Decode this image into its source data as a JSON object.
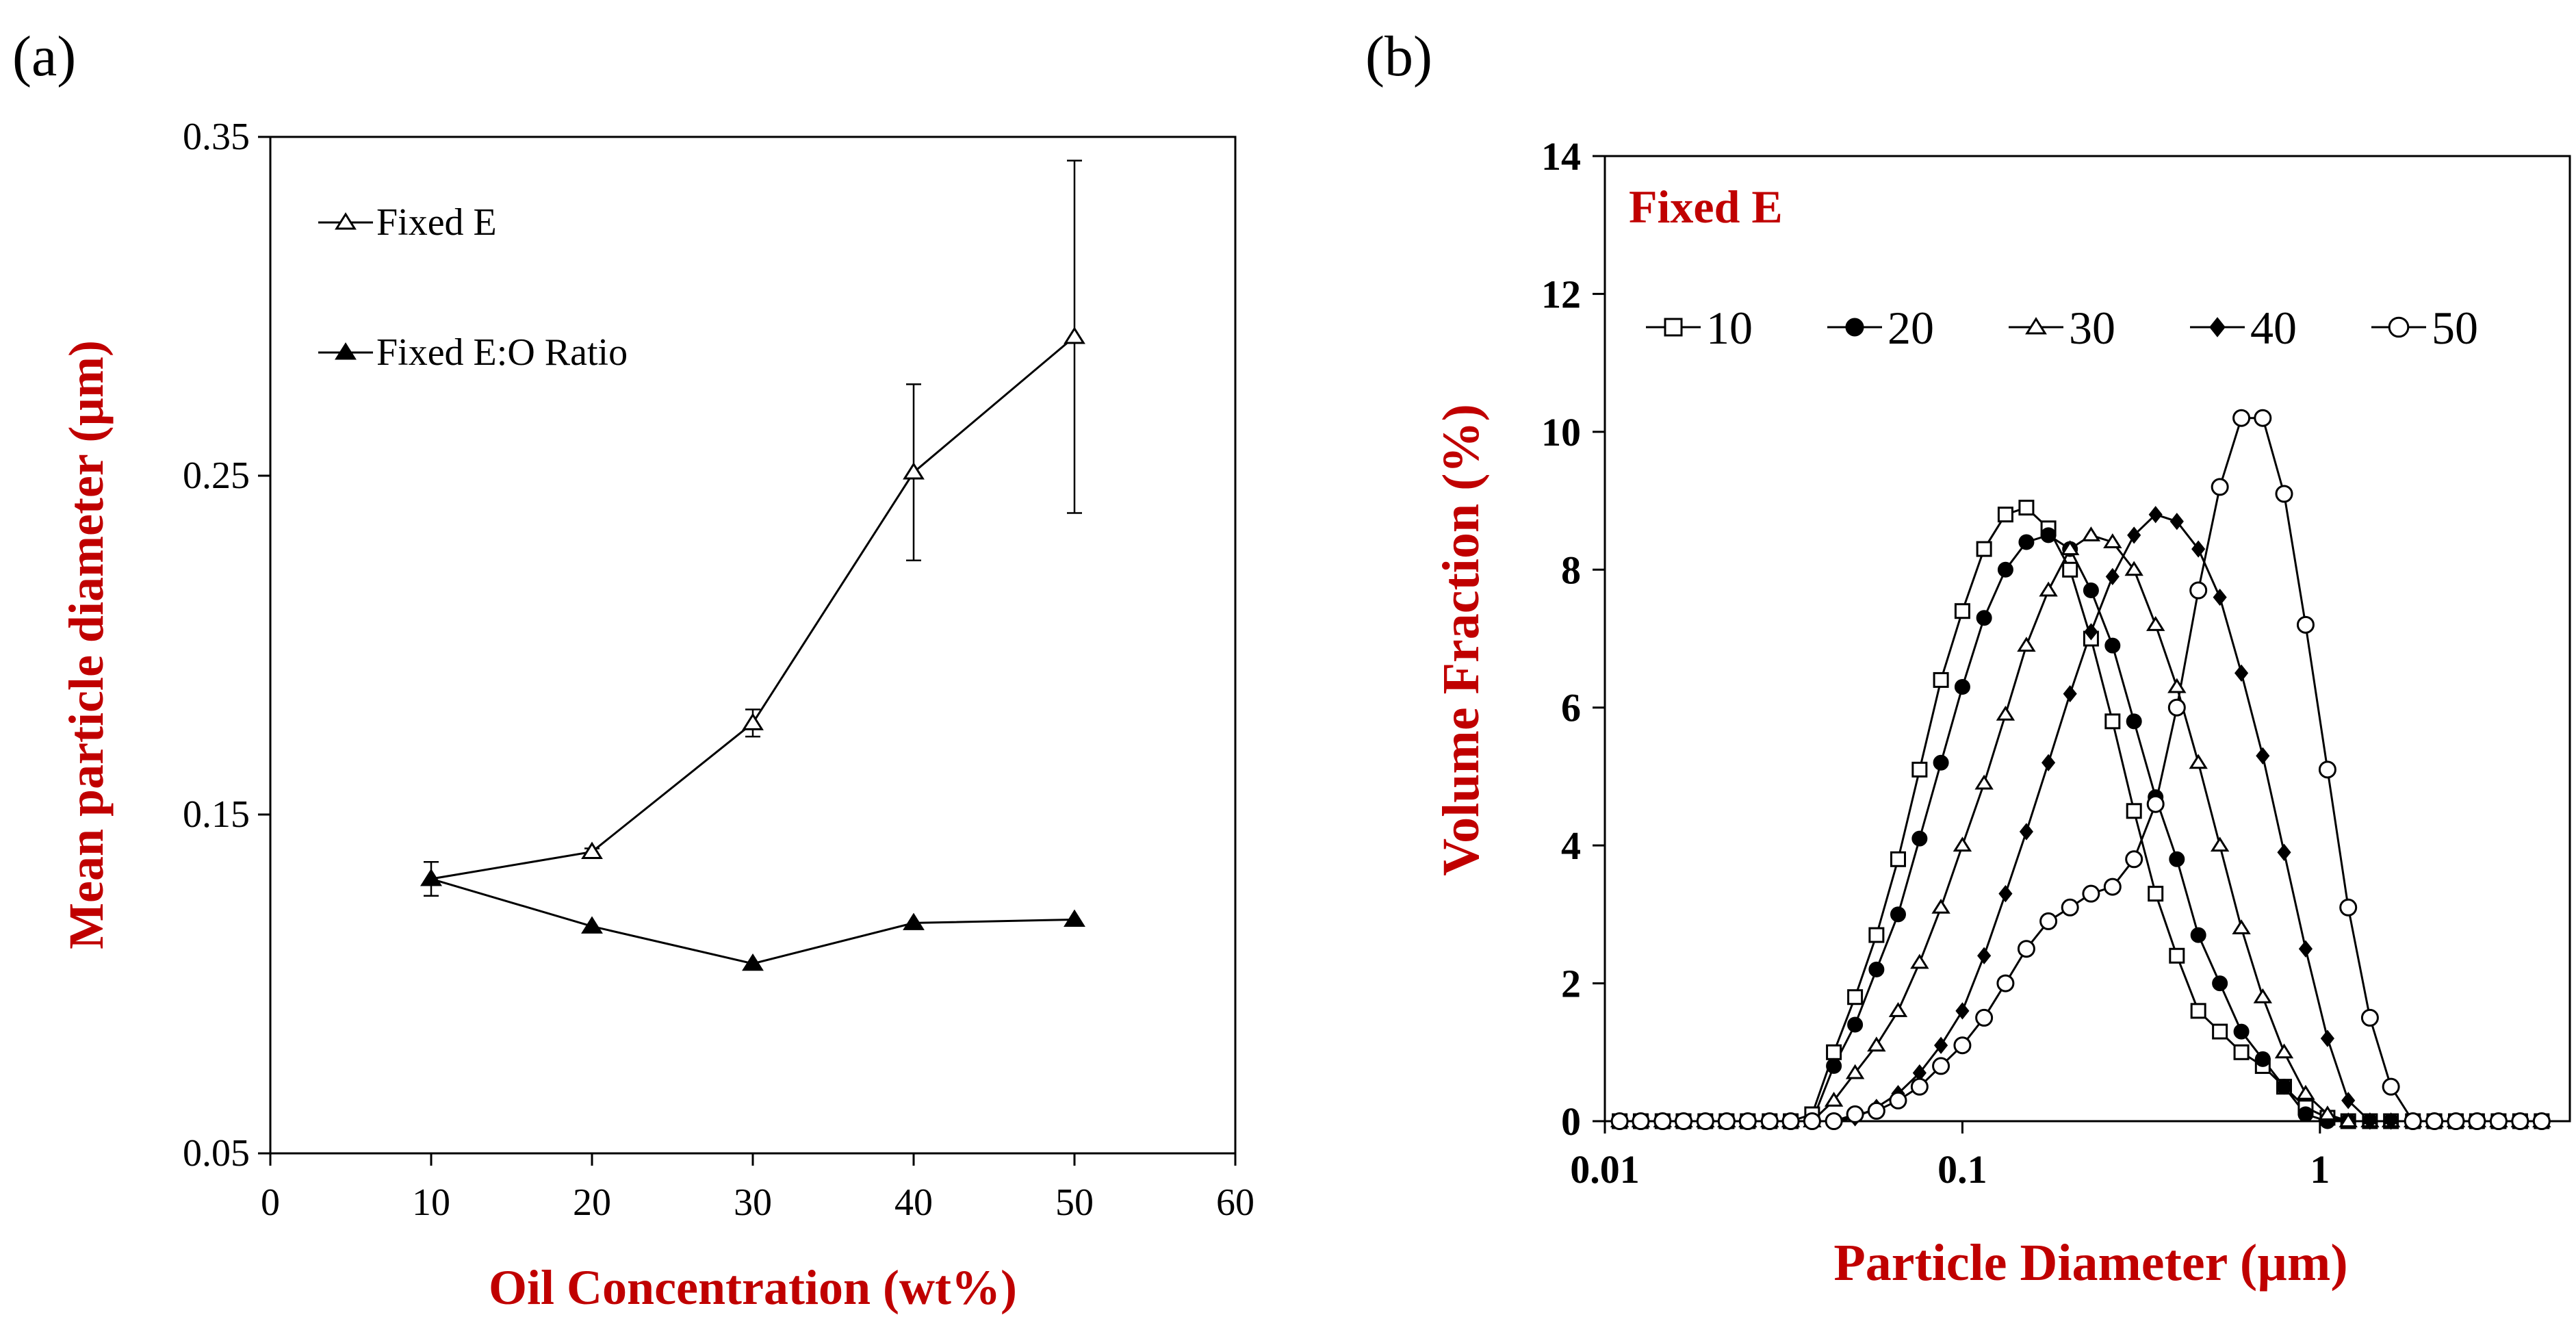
{
  "colors": {
    "axis": "#000000",
    "label": "#c00000",
    "background": "#ffffff"
  },
  "chart_data": [
    {
      "panel_label": "(a)",
      "type": "line",
      "xlabel": "Oil Concentration (wt%)",
      "ylabel": "Mean particle diameter (µm)",
      "xlim": [
        0,
        60
      ],
      "ylim": [
        0.05,
        0.35
      ],
      "x_ticks": [
        0,
        10,
        20,
        30,
        40,
        50,
        60
      ],
      "y_ticks": [
        0.05,
        0.15,
        0.25,
        0.35
      ],
      "x_tick_labels": [
        "0",
        "10",
        "20",
        "30",
        "40",
        "50",
        "60"
      ],
      "y_tick_labels": [
        "0.05",
        "0.15",
        "0.25",
        "0.35"
      ],
      "legend": "top-left",
      "series": [
        {
          "name": "Fixed E",
          "marker": "open-triangle",
          "x": [
            10,
            20,
            30,
            40,
            50
          ],
          "y": [
            0.131,
            0.139,
            0.177,
            0.251,
            0.291
          ],
          "err": [
            0.005,
            0.001,
            0.004,
            0.026,
            0.052
          ]
        },
        {
          "name": "Fixed E:O Ratio",
          "marker": "filled-triangle",
          "x": [
            10,
            20,
            30,
            40,
            50
          ],
          "y": [
            0.131,
            0.117,
            0.106,
            0.118,
            0.119
          ],
          "err": [
            0,
            0,
            0,
            0,
            0
          ]
        }
      ]
    },
    {
      "panel_label": "(b)",
      "type": "line",
      "annotation": "Fixed E",
      "xlabel": "Particle Diameter (µm)",
      "ylabel": "Volume Fraction (%)",
      "xscale": "log",
      "xlim": [
        0.01,
        5
      ],
      "ylim": [
        0,
        14
      ],
      "x_ticks": [
        0.01,
        0.1,
        1
      ],
      "y_ticks": [
        0,
        2,
        4,
        6,
        8,
        10,
        12,
        14
      ],
      "x_tick_labels": [
        "0.01",
        "0.1",
        "1"
      ],
      "y_tick_labels": [
        "0",
        "2",
        "4",
        "6",
        "8",
        "10",
        "12",
        "14"
      ],
      "legend": "top",
      "x": [
        0.011,
        0.0126,
        0.0145,
        0.0166,
        0.0191,
        0.0219,
        0.0251,
        0.0289,
        0.0331,
        0.038,
        0.0437,
        0.0501,
        0.0575,
        0.0661,
        0.0759,
        0.0871,
        0.1,
        0.115,
        0.132,
        0.151,
        0.174,
        0.2,
        0.229,
        0.263,
        0.302,
        0.347,
        0.398,
        0.457,
        0.525,
        0.603,
        0.692,
        0.794,
        0.912,
        1.05,
        1.2,
        1.38,
        1.58,
        1.82,
        2.09,
        2.4,
        2.75,
        3.16,
        3.63,
        4.17
      ],
      "series": [
        {
          "name": "10",
          "marker": "open-square",
          "y": [
            0,
            0,
            0,
            0,
            0,
            0,
            0,
            0,
            0,
            0.1,
            1.0,
            1.8,
            2.7,
            3.8,
            5.1,
            6.4,
            7.4,
            8.3,
            8.8,
            8.9,
            8.6,
            8.0,
            7.0,
            5.8,
            4.5,
            3.3,
            2.4,
            1.6,
            1.3,
            1.0,
            0.8,
            0.5,
            0.2,
            0.05,
            0,
            0,
            0,
            0,
            0,
            0,
            0,
            0,
            0,
            0
          ]
        },
        {
          "name": "20",
          "marker": "filled-circle",
          "y": [
            0,
            0,
            0,
            0,
            0,
            0,
            0,
            0,
            0,
            0,
            0.8,
            1.4,
            2.2,
            3.0,
            4.1,
            5.2,
            6.3,
            7.3,
            8.0,
            8.4,
            8.5,
            8.3,
            7.7,
            6.9,
            5.8,
            4.7,
            3.8,
            2.7,
            2.0,
            1.3,
            0.9,
            0.5,
            0.1,
            0,
            0,
            0,
            0,
            0,
            0,
            0,
            0,
            0,
            0,
            0
          ]
        },
        {
          "name": "30",
          "marker": "open-triangle",
          "y": [
            0,
            0,
            0,
            0,
            0,
            0,
            0,
            0,
            0,
            0,
            0.3,
            0.7,
            1.1,
            1.6,
            2.3,
            3.1,
            4.0,
            4.9,
            5.9,
            6.9,
            7.7,
            8.3,
            8.5,
            8.4,
            8.0,
            7.2,
            6.3,
            5.2,
            4.0,
            2.8,
            1.8,
            1.0,
            0.4,
            0.1,
            0,
            0,
            0,
            0,
            0,
            0,
            0,
            0,
            0,
            0
          ]
        },
        {
          "name": "40",
          "marker": "filled-diamond",
          "y": [
            0,
            0,
            0,
            0,
            0,
            0,
            0,
            0,
            0,
            0,
            0,
            0.05,
            0.2,
            0.4,
            0.7,
            1.1,
            1.6,
            2.4,
            3.3,
            4.2,
            5.2,
            6.2,
            7.1,
            7.9,
            8.5,
            8.8,
            8.7,
            8.3,
            7.6,
            6.5,
            5.3,
            3.9,
            2.5,
            1.2,
            0.3,
            0,
            0,
            0,
            0,
            0,
            0,
            0,
            0,
            0
          ]
        },
        {
          "name": "50",
          "marker": "open-circle",
          "y": [
            0,
            0,
            0,
            0,
            0,
            0,
            0,
            0,
            0,
            0,
            0,
            0.1,
            0.15,
            0.3,
            0.5,
            0.8,
            1.1,
            1.5,
            2.0,
            2.5,
            2.9,
            3.1,
            3.3,
            3.4,
            3.8,
            4.6,
            6.0,
            7.7,
            9.2,
            10.2,
            10.2,
            9.1,
            7.2,
            5.1,
            3.1,
            1.5,
            0.5,
            0,
            0,
            0,
            0,
            0,
            0,
            0
          ]
        }
      ]
    }
  ]
}
